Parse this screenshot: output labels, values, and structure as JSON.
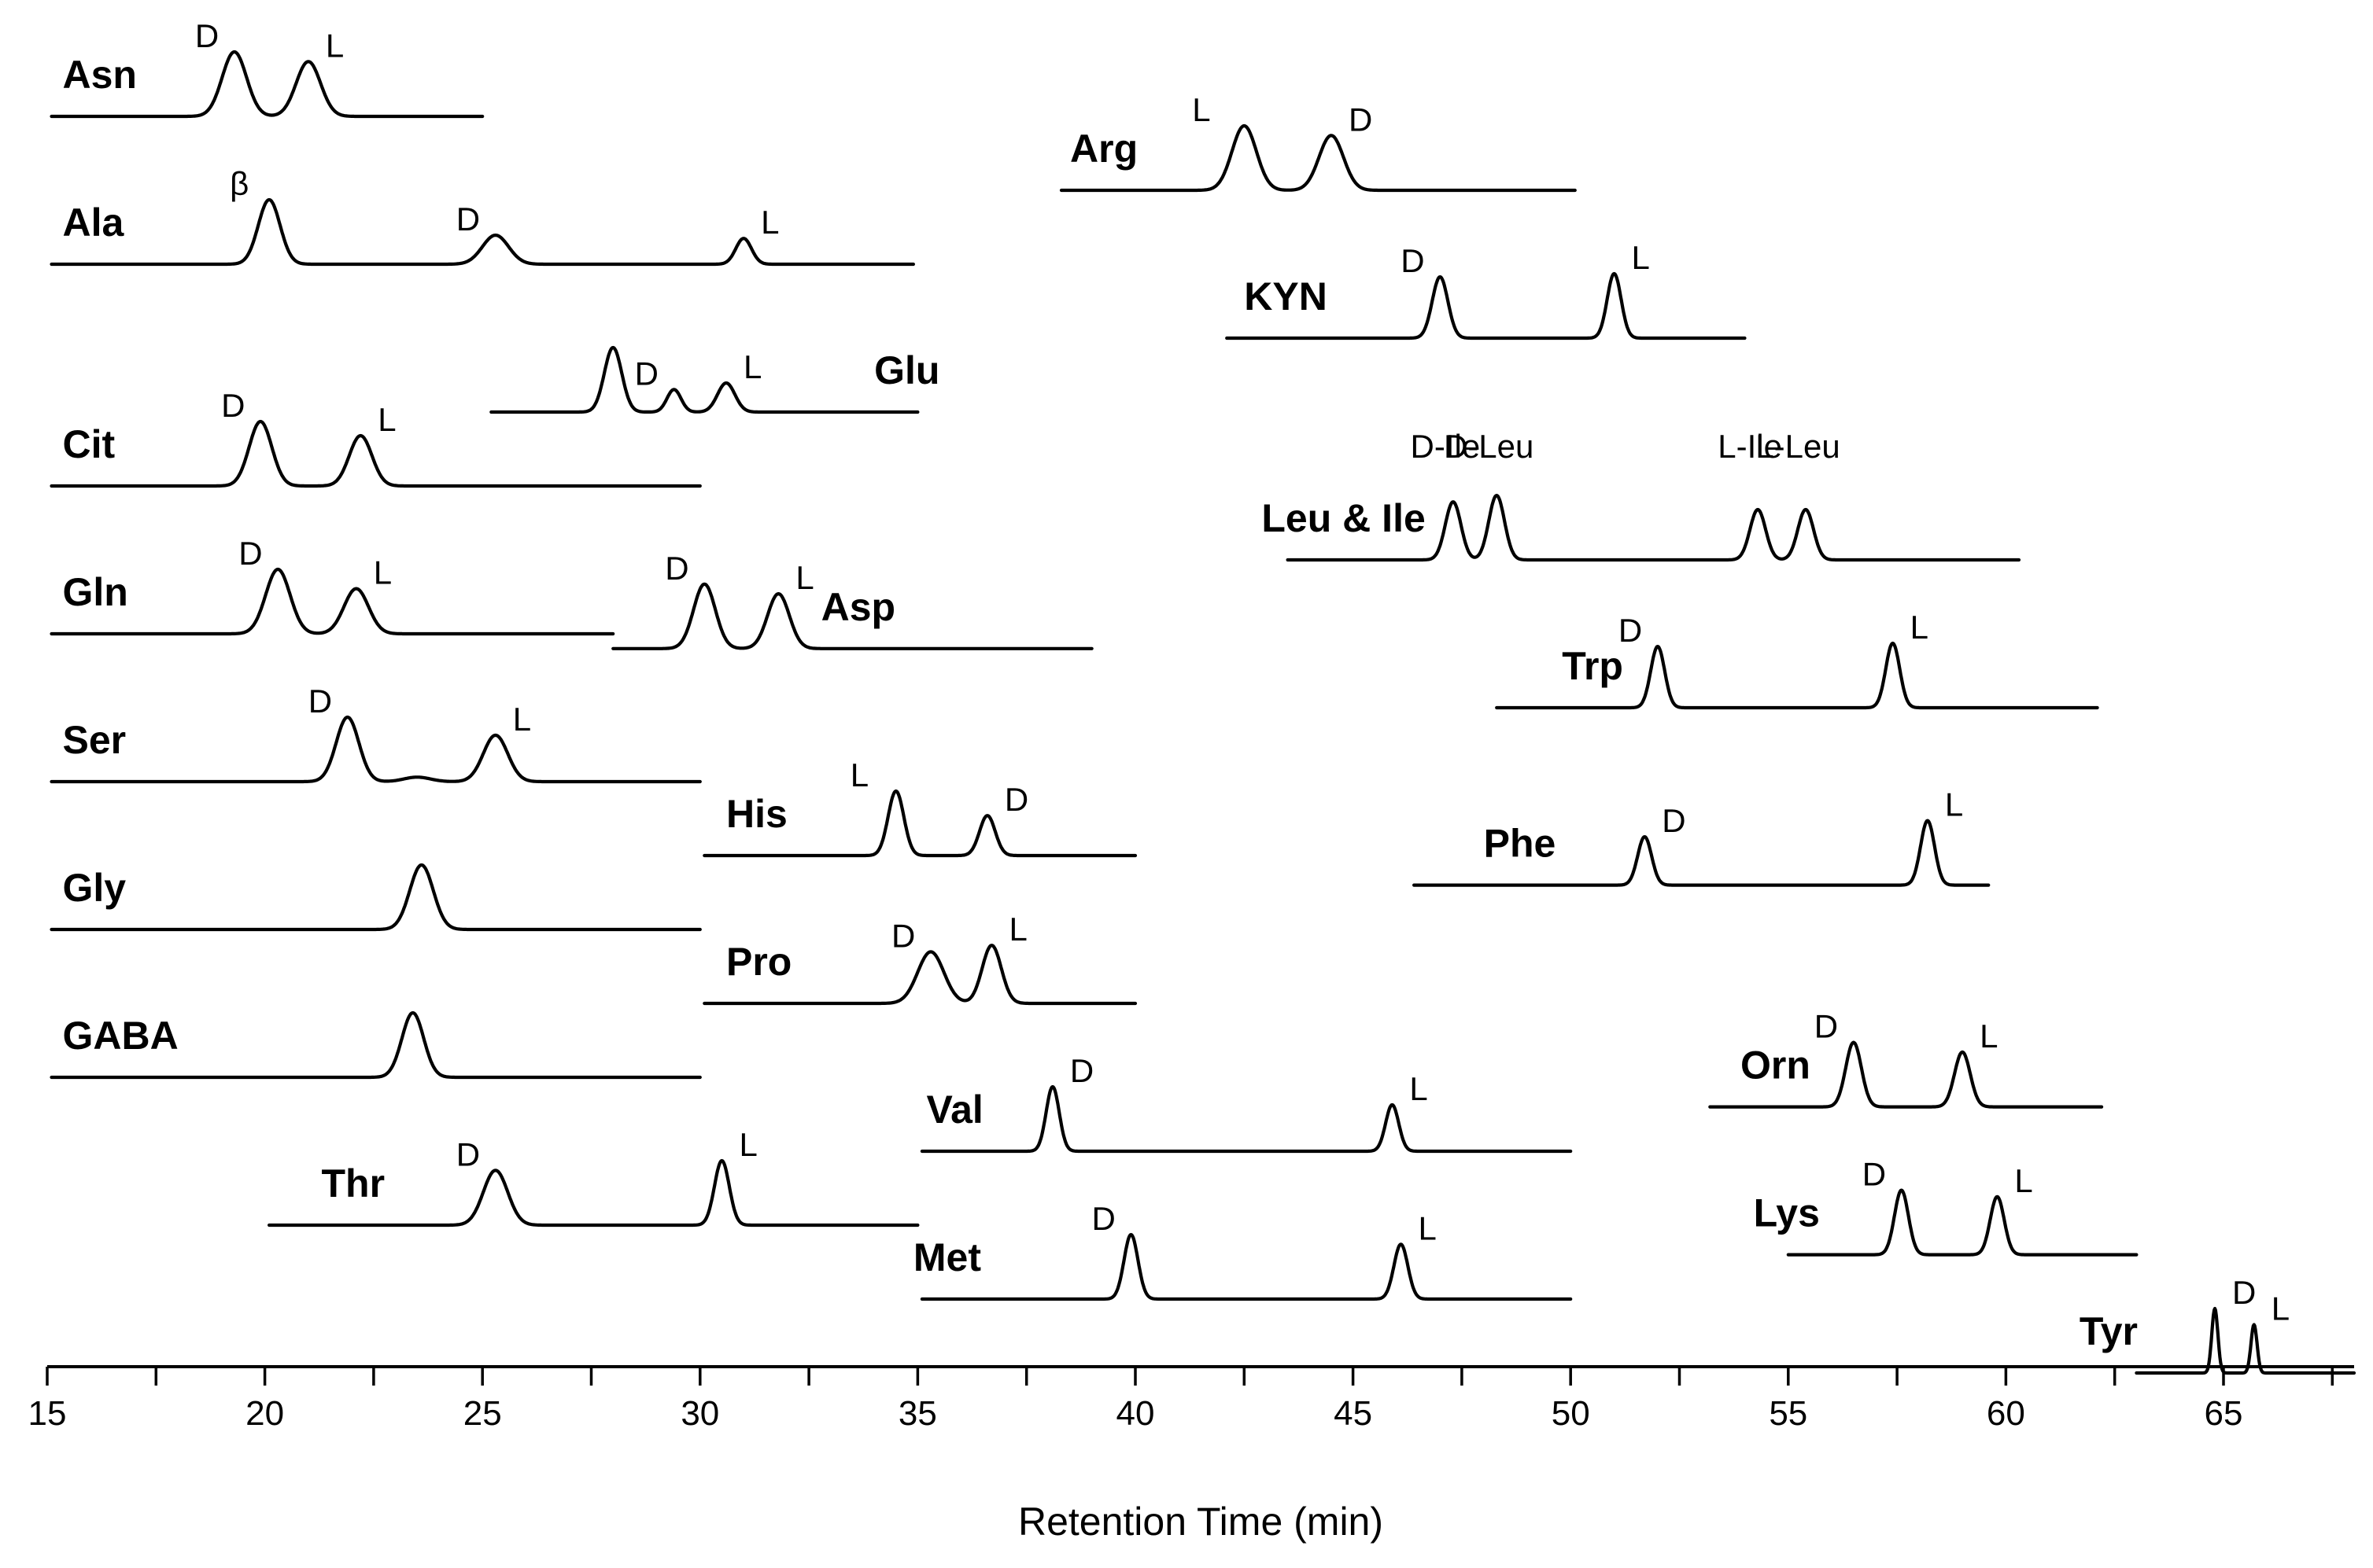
{
  "chart_data": {
    "type": "line",
    "subtype": "stacked-chromatograms",
    "title": "",
    "xlabel": "Retention Time (min)",
    "ylabel": "",
    "xlim": [
      15,
      68
    ],
    "xticks": [
      15,
      20,
      25,
      30,
      35,
      40,
      45,
      50,
      55,
      60,
      65
    ],
    "grid": false,
    "legend": "none",
    "series": [
      {
        "name": "Asn",
        "row": 0,
        "x_range": [
          15.1,
          25.0
        ],
        "peaks": [
          {
            "label": "D",
            "rt": 19.3,
            "height": 1.0,
            "width": 0.28
          },
          {
            "label": "L",
            "rt": 21.0,
            "height": 0.85,
            "width": 0.28
          }
        ]
      },
      {
        "name": "Arg",
        "row": 0.5,
        "x_range": [
          38.3,
          50.1
        ],
        "peaks": [
          {
            "label": "L",
            "rt": 42.5,
            "height": 1.0,
            "width": 0.28
          },
          {
            "label": "D",
            "rt": 44.5,
            "height": 0.85,
            "width": 0.28
          }
        ]
      },
      {
        "name": "Ala",
        "row": 1,
        "x_range": [
          15.1,
          34.9
        ],
        "peaks": [
          {
            "label": "β",
            "rt": 20.1,
            "height": 1.0,
            "width": 0.25
          },
          {
            "label": "D",
            "rt": 25.3,
            "height": 0.45,
            "width": 0.3
          },
          {
            "label": "L",
            "rt": 31.0,
            "height": 0.4,
            "width": 0.18
          }
        ]
      },
      {
        "name": "KYN",
        "row": 1.5,
        "x_range": [
          42.1,
          54.0
        ],
        "peaks": [
          {
            "label": "D",
            "rt": 47.0,
            "height": 0.95,
            "width": 0.18
          },
          {
            "label": "L",
            "rt": 51.0,
            "height": 1.0,
            "width": 0.16
          }
        ]
      },
      {
        "name": "Glu",
        "row": 2,
        "x_range": [
          25.2,
          35.0
        ],
        "peaks": [
          {
            "label": "",
            "rt": 28.0,
            "height": 1.0,
            "width": 0.2
          },
          {
            "label": "D",
            "rt": 29.4,
            "height": 0.35,
            "width": 0.16
          },
          {
            "label": "L",
            "rt": 30.6,
            "height": 0.45,
            "width": 0.2
          }
        ]
      },
      {
        "name": "Cit",
        "row": 2.5,
        "x_range": [
          15.1,
          30.0
        ],
        "peaks": [
          {
            "label": "D",
            "rt": 19.9,
            "height": 1.0,
            "width": 0.26
          },
          {
            "label": "L",
            "rt": 22.2,
            "height": 0.78,
            "width": 0.26
          }
        ]
      },
      {
        "name": "Leu & Ile",
        "row": 3,
        "x_range": [
          43.5,
          60.3
        ],
        "peaks": [
          {
            "label": "D-Ile",
            "rt": 47.3,
            "height": 0.9,
            "width": 0.18
          },
          {
            "label": "D-Leu",
            "rt": 48.3,
            "height": 1.0,
            "width": 0.18
          },
          {
            "label": "L-Ile",
            "rt": 54.3,
            "height": 0.78,
            "width": 0.18
          },
          {
            "label": "L-Leu",
            "rt": 55.4,
            "height": 0.78,
            "width": 0.18
          }
        ]
      },
      {
        "name": "Gln",
        "row": 3.5,
        "x_range": [
          15.1,
          28.0
        ],
        "peaks": [
          {
            "label": "D",
            "rt": 20.3,
            "height": 1.0,
            "width": 0.28
          },
          {
            "label": "L",
            "rt": 22.1,
            "height": 0.7,
            "width": 0.28
          }
        ]
      },
      {
        "name": "Asp",
        "row": 3.6,
        "x_range": [
          28.0,
          39.0
        ],
        "peaks": [
          {
            "label": "D",
            "rt": 30.1,
            "height": 1.0,
            "width": 0.25
          },
          {
            "label": "L",
            "rt": 31.8,
            "height": 0.85,
            "width": 0.25
          }
        ]
      },
      {
        "name": "Trp",
        "row": 4,
        "x_range": [
          48.3,
          62.1
        ],
        "peaks": [
          {
            "label": "D",
            "rt": 52.0,
            "height": 0.95,
            "width": 0.16
          },
          {
            "label": "L",
            "rt": 57.4,
            "height": 1.0,
            "width": 0.16
          }
        ]
      },
      {
        "name": "Ser",
        "row": 4.5,
        "x_range": [
          15.1,
          30.0
        ],
        "peaks": [
          {
            "label": "D",
            "rt": 21.9,
            "height": 1.0,
            "width": 0.26
          },
          {
            "label": "",
            "rt": 23.5,
            "height": 0.07,
            "width": 0.3
          },
          {
            "label": "L",
            "rt": 25.3,
            "height": 0.72,
            "width": 0.28
          }
        ]
      },
      {
        "name": "His",
        "row": 5,
        "x_range": [
          30.1,
          40.0
        ],
        "peaks": [
          {
            "label": "L",
            "rt": 34.5,
            "height": 1.0,
            "width": 0.18
          },
          {
            "label": "D",
            "rt": 36.6,
            "height": 0.62,
            "width": 0.18
          }
        ]
      },
      {
        "name": "Phe",
        "row": 5.2,
        "x_range": [
          46.4,
          59.6
        ],
        "peaks": [
          {
            "label": "D",
            "rt": 51.7,
            "height": 0.75,
            "width": 0.16
          },
          {
            "label": "L",
            "rt": 58.2,
            "height": 1.0,
            "width": 0.16
          }
        ]
      },
      {
        "name": "Gly",
        "row": 5.5,
        "x_range": [
          15.1,
          30.0
        ],
        "peaks": [
          {
            "label": "",
            "rt": 23.6,
            "height": 1.0,
            "width": 0.27
          }
        ]
      },
      {
        "name": "Pro",
        "row": 6,
        "x_range": [
          30.1,
          40.0
        ],
        "peaks": [
          {
            "label": "D",
            "rt": 35.3,
            "height": 0.8,
            "width": 0.3
          },
          {
            "label": "L",
            "rt": 36.7,
            "height": 0.9,
            "width": 0.22
          }
        ]
      },
      {
        "name": "GABA",
        "row": 6.5,
        "x_range": [
          15.1,
          30.0
        ],
        "peaks": [
          {
            "label": "",
            "rt": 23.4,
            "height": 1.0,
            "width": 0.25
          }
        ]
      },
      {
        "name": "Orn",
        "row": 6.7,
        "x_range": [
          53.2,
          62.2
        ],
        "peaks": [
          {
            "label": "D",
            "rt": 56.5,
            "height": 1.0,
            "width": 0.18
          },
          {
            "label": "L",
            "rt": 59.0,
            "height": 0.85,
            "width": 0.18
          }
        ]
      },
      {
        "name": "Val",
        "row": 7,
        "x_range": [
          35.1,
          50.0
        ],
        "peaks": [
          {
            "label": "D",
            "rt": 38.1,
            "height": 1.0,
            "width": 0.15
          },
          {
            "label": "L",
            "rt": 45.9,
            "height": 0.72,
            "width": 0.15
          }
        ]
      },
      {
        "name": "Thr",
        "row": 7.5,
        "x_range": [
          20.1,
          35.0
        ],
        "peaks": [
          {
            "label": "D",
            "rt": 25.3,
            "height": 0.85,
            "width": 0.28
          },
          {
            "label": "L",
            "rt": 30.5,
            "height": 1.0,
            "width": 0.17
          }
        ]
      },
      {
        "name": "Lys",
        "row": 7.7,
        "x_range": [
          55.0,
          63.0
        ],
        "peaks": [
          {
            "label": "D",
            "rt": 57.6,
            "height": 1.0,
            "width": 0.16
          },
          {
            "label": "L",
            "rt": 59.8,
            "height": 0.9,
            "width": 0.16
          }
        ]
      },
      {
        "name": "Met",
        "row": 8,
        "x_range": [
          35.1,
          50.0
        ],
        "peaks": [
          {
            "label": "D",
            "rt": 39.9,
            "height": 1.0,
            "width": 0.16
          },
          {
            "label": "L",
            "rt": 46.1,
            "height": 0.85,
            "width": 0.16
          }
        ]
      },
      {
        "name": "Tyr",
        "row": 8.5,
        "x_range": [
          63.0,
          68.0
        ],
        "peaks": [
          {
            "label": "D",
            "rt": 64.8,
            "height": 1.0,
            "width": 0.07
          },
          {
            "label": "L",
            "rt": 65.7,
            "height": 0.75,
            "width": 0.07
          }
        ]
      }
    ]
  }
}
